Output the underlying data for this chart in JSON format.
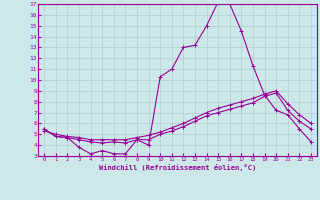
{
  "title": "",
  "xlabel": "Windchill (Refroidissement éolien,°C)",
  "ylabel": "",
  "bg_color": "#cce8e8",
  "line_color": "#990099",
  "grid_color": "#b0cccc",
  "x": [
    0,
    1,
    2,
    3,
    4,
    5,
    6,
    7,
    8,
    9,
    10,
    11,
    12,
    13,
    14,
    15,
    16,
    17,
    18,
    19,
    20,
    21,
    22,
    23
  ],
  "line1": [
    5.5,
    4.8,
    4.7,
    3.8,
    3.2,
    3.5,
    3.2,
    3.2,
    4.5,
    4.0,
    10.3,
    11.0,
    13.0,
    13.2,
    15.0,
    17.2,
    17.0,
    14.5,
    11.3,
    8.6,
    7.2,
    6.8,
    5.5,
    4.3
  ],
  "line2": [
    5.5,
    4.8,
    4.7,
    4.5,
    4.3,
    4.2,
    4.3,
    4.2,
    4.5,
    4.5,
    5.0,
    5.3,
    5.7,
    6.2,
    6.7,
    7.0,
    7.3,
    7.6,
    7.9,
    8.5,
    8.8,
    7.2,
    6.2,
    5.5
  ],
  "line3": [
    5.3,
    5.0,
    4.8,
    4.7,
    4.5,
    4.5,
    4.5,
    4.5,
    4.7,
    4.9,
    5.2,
    5.6,
    6.0,
    6.5,
    7.0,
    7.4,
    7.7,
    8.0,
    8.3,
    8.7,
    9.0,
    7.8,
    6.8,
    6.0
  ],
  "ylim": [
    3,
    17
  ],
  "xlim": [
    -0.5,
    23.5
  ],
  "yticks": [
    3,
    4,
    5,
    6,
    7,
    8,
    9,
    10,
    11,
    12,
    13,
    14,
    15,
    16,
    17
  ],
  "xticks": [
    0,
    1,
    2,
    3,
    4,
    5,
    6,
    7,
    8,
    9,
    10,
    11,
    12,
    13,
    14,
    15,
    16,
    17,
    18,
    19,
    20,
    21,
    22,
    23
  ]
}
